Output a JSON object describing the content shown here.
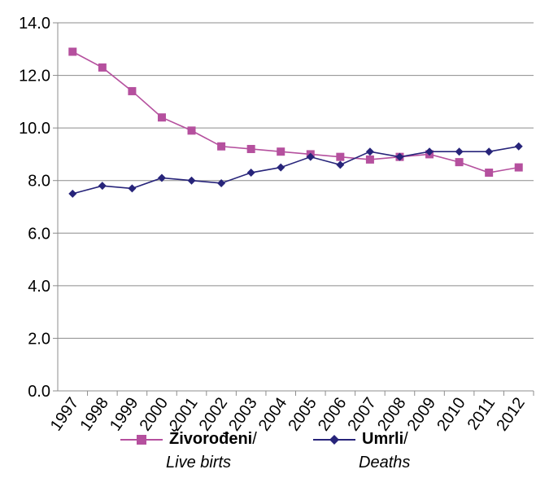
{
  "chart_data": {
    "type": "line",
    "categories": [
      "1997",
      "1998",
      "1999",
      "2000",
      "2001",
      "2002",
      "2003",
      "2004",
      "2005",
      "2006",
      "2007",
      "2008",
      "2009",
      "2010",
      "2011",
      "2012"
    ],
    "ylim": [
      0,
      14
    ],
    "yticks": [
      "0.0",
      "2.0",
      "4.0",
      "6.0",
      "8.0",
      "10.0",
      "12.0",
      "14.0"
    ],
    "grid": true,
    "legend_position": "bottom",
    "series": [
      {
        "name": "Živorođeni/ Live birts",
        "name_bold": "Živorođeni",
        "name_sep": "/",
        "name_italic": "Live birts",
        "color": "#b5509e",
        "marker": "square",
        "values": [
          12.9,
          12.3,
          11.4,
          10.4,
          9.9,
          9.3,
          9.2,
          9.1,
          9.0,
          8.9,
          8.8,
          8.9,
          9.0,
          8.7,
          8.3,
          8.5
        ]
      },
      {
        "name": "Umrli/ Deaths",
        "name_bold": "Umrli",
        "name_sep": "/",
        "name_italic": "Deaths",
        "color": "#27247a",
        "marker": "diamond",
        "values": [
          7.5,
          7.8,
          7.7,
          8.1,
          8.0,
          7.9,
          8.3,
          8.5,
          8.9,
          8.6,
          9.1,
          8.9,
          9.1,
          9.1,
          9.1,
          9.3
        ]
      }
    ]
  }
}
